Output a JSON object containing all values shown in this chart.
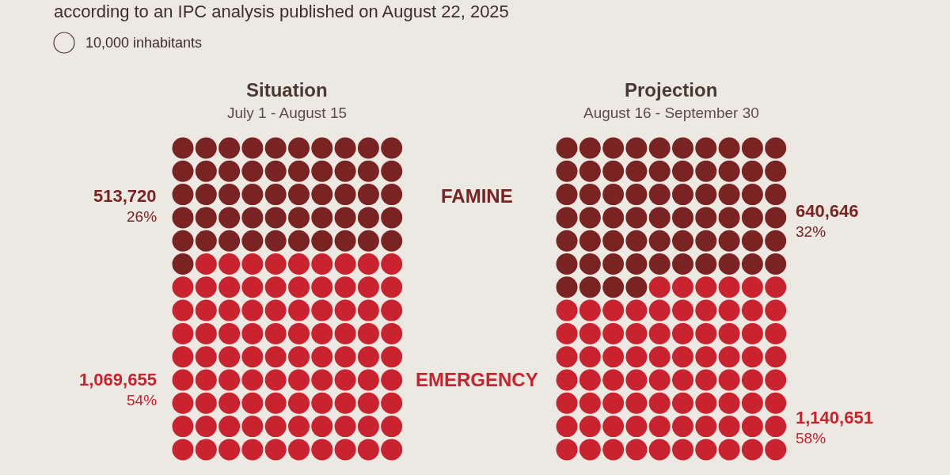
{
  "chart_data": [
    {
      "type": "other",
      "subtitle": "according to an IPC analysis published on August 22, 2025",
      "legend_title": "10,000 inhabitants"
    },
    {
      "type": "other",
      "title": "Situation",
      "subtitle": "July 1 - August 15",
      "categories": [
        "FAMINE",
        "EMERGENCY"
      ],
      "values": [
        513720,
        1069655
      ],
      "colors": [
        "#7a2323",
        "#c8232f"
      ],
      "value_labels": [
        "513,720",
        "1,069,655"
      ],
      "annotations": [
        "26%",
        "54%"
      ]
    },
    {
      "type": "other",
      "title": "Projection",
      "subtitle": "August 16 - September 30",
      "categories": [
        null,
        null
      ],
      "values": [
        640646,
        1140651
      ],
      "colors": [
        "#7a2323",
        "#c8232f"
      ],
      "value_labels": [
        "640,646",
        "1,140,651"
      ],
      "annotations": [
        "32%",
        "58%"
      ]
    }
  ]
}
